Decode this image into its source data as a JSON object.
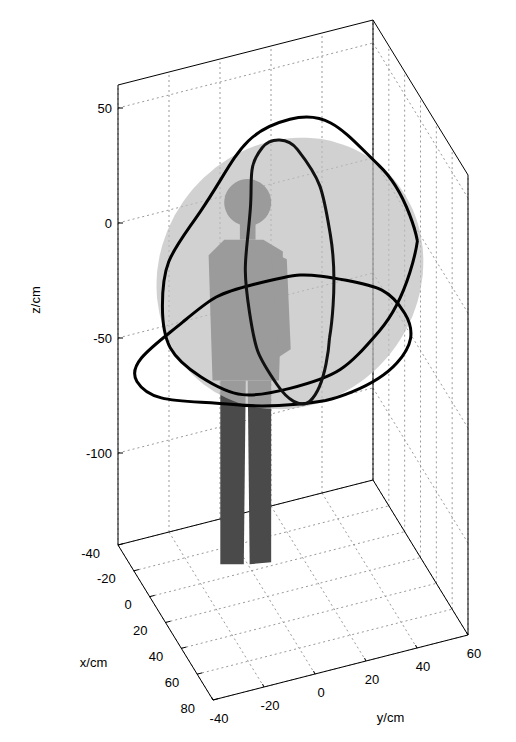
{
  "chart_data": {
    "type": "line3d",
    "xlabel": "x/cm",
    "ylabel": "y/cm",
    "zlabel": "z/cm",
    "xlim": [
      -40,
      80
    ],
    "ylim": [
      -40,
      60
    ],
    "zlim": [
      -140,
      60
    ],
    "xticks": [
      -40,
      -20,
      0,
      20,
      40,
      60,
      80
    ],
    "yticks": [
      -40,
      -20,
      0,
      20,
      40,
      60
    ],
    "zticks": [
      -100,
      -50,
      0,
      50
    ],
    "grid": true,
    "sphere": {
      "center": [
        0,
        15,
        -15
      ],
      "radius": 50,
      "color": "#bdbdbd"
    },
    "figure": {
      "base": [
        -5,
        0,
        -140
      ],
      "height": 170,
      "color": "#4a4a4a"
    },
    "series": [
      {
        "color": "#000000",
        "values": [
          [
            0,
            65,
            -15
          ],
          [
            0,
            50,
            22
          ],
          [
            0,
            15,
            52
          ],
          [
            0,
            -20,
            22
          ],
          [
            0,
            -35,
            -15
          ],
          [
            0,
            -20,
            -50
          ],
          [
            0,
            15,
            -65
          ],
          [
            0,
            50,
            -50
          ]
        ]
      },
      {
        "color": "#000000",
        "values": [
          [
            45,
            15,
            -45
          ],
          [
            32,
            47,
            -45
          ],
          [
            0,
            60,
            -45
          ],
          [
            -32,
            47,
            -45
          ],
          [
            -45,
            15,
            -45
          ],
          [
            -32,
            -17,
            -45
          ],
          [
            0,
            -45,
            -45
          ],
          [
            32,
            -17,
            -45
          ]
        ]
      },
      {
        "color": "#111111",
        "values": [
          [
            50,
            15,
            -15
          ],
          [
            35,
            20,
            20
          ],
          [
            0,
            18,
            38
          ],
          [
            -35,
            15,
            20
          ],
          [
            -50,
            15,
            -15
          ],
          [
            -35,
            10,
            -50
          ],
          [
            0,
            10,
            -62
          ],
          [
            35,
            12,
            -50
          ]
        ]
      }
    ]
  }
}
